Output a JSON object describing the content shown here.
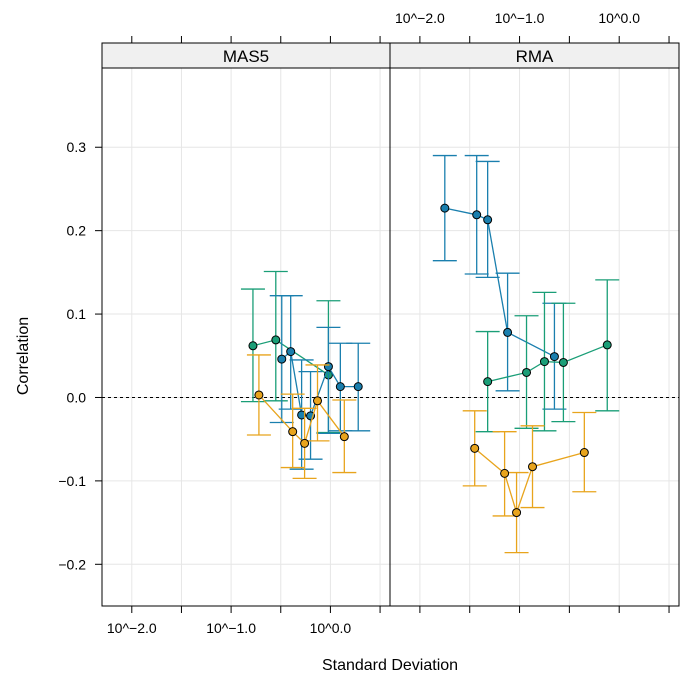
{
  "chart_data": {
    "type": "scatter",
    "title": "",
    "xlabel": "Standard Deviation",
    "ylabel": "Correlation",
    "x_scale": "log10",
    "xlim_log10": [
      -2.3,
      0.6
    ],
    "ylim": [
      -0.25,
      0.395
    ],
    "x_tick_values_log10": [
      -2.0,
      -1.5,
      -1.0,
      -0.5,
      0.0,
      0.5
    ],
    "x_tick_labels": [
      "10^−2.0",
      "",
      "10^−1.0",
      "",
      "10^0.0",
      ""
    ],
    "y_ticks": [
      -0.2,
      -0.1,
      0.0,
      0.1,
      0.2,
      0.3
    ],
    "y_tick_labels": [
      "−0.2",
      "−0.1",
      "0.0",
      "0.1",
      "0.2",
      "0.3"
    ],
    "reference_line_y": 0,
    "grid": true,
    "panels": [
      {
        "strip": "MAS5",
        "series": [
          {
            "color": "#1a9e77",
            "points": [
              {
                "x": -0.78,
                "y": 0.062,
                "lo": -0.005,
                "hi": 0.13
              },
              {
                "x": -0.55,
                "y": 0.069,
                "lo": -0.004,
                "hi": 0.151
              },
              {
                "x": -0.02,
                "y": 0.027,
                "lo": -0.042,
                "hi": 0.116
              }
            ]
          },
          {
            "color": "#1a7fae",
            "points": [
              {
                "x": -0.49,
                "y": 0.046,
                "lo": -0.03,
                "hi": 0.122
              },
              {
                "x": -0.4,
                "y": 0.055,
                "lo": -0.014,
                "hi": 0.122
              },
              {
                "x": -0.29,
                "y": -0.021,
                "lo": -0.086,
                "hi": 0.045
              },
              {
                "x": -0.2,
                "y": -0.022,
                "lo": -0.074,
                "hi": 0.031
              },
              {
                "x": -0.02,
                "y": 0.037,
                "lo": -0.043,
                "hi": 0.084
              },
              {
                "x": 0.1,
                "y": 0.013,
                "lo": -0.04,
                "hi": 0.065
              },
              {
                "x": 0.28,
                "y": 0.013,
                "lo": -0.04,
                "hi": 0.065
              }
            ]
          },
          {
            "color": "#e8a41c",
            "points": [
              {
                "x": -0.72,
                "y": 0.003,
                "lo": -0.045,
                "hi": 0.051
              },
              {
                "x": -0.38,
                "y": -0.041,
                "lo": -0.084,
                "hi": 0.004
              },
              {
                "x": -0.26,
                "y": -0.055,
                "lo": -0.097,
                "hi": -0.013
              },
              {
                "x": -0.13,
                "y": -0.004,
                "lo": -0.052,
                "hi": 0.039
              },
              {
                "x": 0.14,
                "y": -0.047,
                "lo": -0.09,
                "hi": -0.003
              }
            ]
          }
        ]
      },
      {
        "strip": "RMA",
        "series": [
          {
            "color": "#1a7fae",
            "points": [
              {
                "x": -1.75,
                "y": 0.227,
                "lo": 0.164,
                "hi": 0.29
              },
              {
                "x": -1.43,
                "y": 0.219,
                "lo": 0.148,
                "hi": 0.29
              },
              {
                "x": -1.32,
                "y": 0.213,
                "lo": 0.144,
                "hi": 0.283
              },
              {
                "x": -1.12,
                "y": 0.078,
                "lo": 0.008,
                "hi": 0.149
              },
              {
                "x": -0.65,
                "y": 0.049,
                "lo": -0.014,
                "hi": 0.113
              }
            ]
          },
          {
            "color": "#1a9e77",
            "points": [
              {
                "x": -1.32,
                "y": 0.019,
                "lo": -0.041,
                "hi": 0.079
              },
              {
                "x": -0.93,
                "y": 0.03,
                "lo": -0.037,
                "hi": 0.098
              },
              {
                "x": -0.75,
                "y": 0.043,
                "lo": -0.04,
                "hi": 0.126
              },
              {
                "x": -0.56,
                "y": 0.042,
                "lo": -0.029,
                "hi": 0.113
              },
              {
                "x": -0.12,
                "y": 0.063,
                "lo": -0.016,
                "hi": 0.141
              }
            ]
          },
          {
            "color": "#e8a41c",
            "points": [
              {
                "x": -1.45,
                "y": -0.061,
                "lo": -0.106,
                "hi": -0.016
              },
              {
                "x": -1.15,
                "y": -0.091,
                "lo": -0.142,
                "hi": -0.041
              },
              {
                "x": -1.03,
                "y": -0.138,
                "lo": -0.186,
                "hi": -0.09
              },
              {
                "x": -0.87,
                "y": -0.083,
                "lo": -0.132,
                "hi": -0.034
              },
              {
                "x": -0.35,
                "y": -0.066,
                "lo": -0.113,
                "hi": -0.018
              }
            ]
          }
        ]
      }
    ]
  }
}
